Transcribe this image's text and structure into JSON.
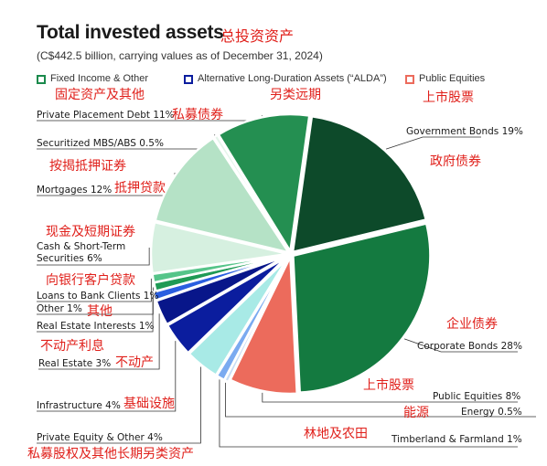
{
  "header": {
    "title": "Total invested assets",
    "title_cn": "总投资资产",
    "subtitle": "(C$442.5 billion, carrying values as of December 31, 2024)"
  },
  "legend": [
    {
      "label": "Fixed Income & Other",
      "cn": "固定资产及其他",
      "color": "#1a8a4c"
    },
    {
      "label": "Alternative Long-Duration Assets (“ALDA”)",
      "cn": "另类远期",
      "color": "#0b1d9e"
    },
    {
      "label": "Public Equities",
      "cn": "上市股票",
      "color": "#ec6b5c"
    }
  ],
  "chart_data": {
    "type": "pie",
    "title": "Total invested assets",
    "slices": [
      {
        "label": "Government Bonds 19%",
        "cn": "政府债券",
        "value": 19,
        "group": "Fixed Income & Other",
        "color": "#0d4a2a"
      },
      {
        "label": "Corporate Bonds 28%",
        "cn": "企业债券",
        "value": 28,
        "group": "Fixed Income & Other",
        "color": "#147a40"
      },
      {
        "label": "Public Equities 8%",
        "cn": "上市股票",
        "value": 8,
        "group": "Public Equities",
        "color": "#ec6b5c"
      },
      {
        "label": "Energy 0.5%",
        "cn": "能源",
        "value": 0.5,
        "group": "ALDA",
        "color": "#c7dcf5"
      },
      {
        "label": "Timberland & Farmland 1%",
        "cn": "林地及农田",
        "value": 1,
        "group": "ALDA",
        "color": "#7aaaf0"
      },
      {
        "label": "Private Equity & Other 4%",
        "cn": "私募股权及其他长期另类资产",
        "value": 4,
        "group": "ALDA",
        "color": "#a8eae6"
      },
      {
        "label": "Infrastructure 4%",
        "cn": "基础设施",
        "value": 4,
        "group": "ALDA",
        "color": "#0b1d9e"
      },
      {
        "label": "Real Estate 3%",
        "cn": "不动产",
        "value": 3,
        "group": "ALDA",
        "color": "#08168a"
      },
      {
        "label": "Real Estate Interests 1%",
        "cn": "不动产利息",
        "value": 1,
        "group": "ALDA",
        "color": "#2a5ee0"
      },
      {
        "label": "Other 1%",
        "cn": "其他",
        "value": 1,
        "group": "Fixed Income & Other",
        "color": "#1f9a55"
      },
      {
        "label": "Loans to Bank Clients 1%",
        "cn": "向银行客户贷款",
        "value": 1,
        "group": "Fixed Income & Other",
        "color": "#55c489"
      },
      {
        "label": "Cash & Short-Term Securities 6%",
        "cn": "现金及短期证券",
        "value": 6,
        "group": "Fixed Income & Other",
        "color": "#d6f0e0"
      },
      {
        "label": "Mortgages 12%",
        "cn": "抵押贷款",
        "value": 12,
        "group": "Fixed Income & Other",
        "color": "#b5e2c6"
      },
      {
        "label": "Securitized MBS/ABS 0.5%",
        "cn": "按揭抵押证券",
        "value": 0.5,
        "group": "Fixed Income & Other",
        "color": "#e4f5ea"
      },
      {
        "label": "Private Placement Debt 11%",
        "cn": "私募债券",
        "value": 11,
        "group": "Fixed Income & Other",
        "color": "#248f51"
      }
    ]
  }
}
